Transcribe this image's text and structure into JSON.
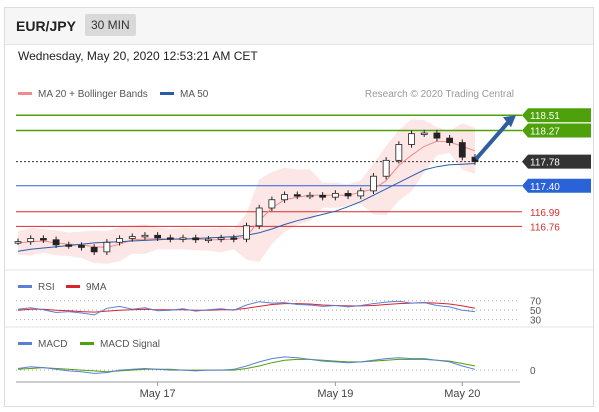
{
  "header": {
    "pair": "EUR/JPY",
    "timeframe": "30 MIN"
  },
  "datetime": "Wednesday, May 20, 2020 12:53:21 AM CET",
  "legend": {
    "bb_label": "MA 20 + Bollinger Bands",
    "ma_label": "MA 50",
    "credit": "Research © 2020 Trading Central",
    "rsi_label": "RSI",
    "rsi_ma_label": "9MA",
    "macd_label": "MACD",
    "macd_signal_label": "MACD Signal"
  },
  "colors": {
    "green": "#4ea10a",
    "blue": "#2a62d8",
    "red": "#d32f2f",
    "dark": "#333333",
    "bb": "#f28b8b",
    "ma50": "#2a5ca8",
    "rsi": "#5b7fd6",
    "rsi_ma": "#d9242c",
    "macd": "#5b7fd6",
    "macd_signal": "#4ea10a"
  },
  "chart_data": [
    {
      "type": "line",
      "panel": "price",
      "ylim": [
        116.2,
        118.75
      ],
      "x_tick_labels": [
        "May 17",
        "May 19",
        "May 20"
      ],
      "levels": [
        {
          "value": 118.51,
          "label": "118.51",
          "color": "#4ea10a",
          "style": "resistance"
        },
        {
          "value": 118.27,
          "label": "118.27",
          "color": "#4ea10a",
          "style": "resistance"
        },
        {
          "value": 117.78,
          "label": "117.78",
          "color": "#333333",
          "style": "current"
        },
        {
          "value": 117.4,
          "label": "117.40",
          "color": "#2a62d8",
          "style": "pivot"
        },
        {
          "value": 116.99,
          "label": "116.99",
          "color": "#d32f2f",
          "style": "support"
        },
        {
          "value": 116.76,
          "label": "116.76",
          "color": "#d32f2f",
          "style": "support"
        }
      ],
      "forecast_arrow": {
        "from": 117.82,
        "to": 118.51
      },
      "series": [
        {
          "name": "MA 20 + Bollinger Bands",
          "values": [
            116.5,
            116.52,
            116.53,
            116.5,
            116.48,
            116.47,
            116.44,
            116.43,
            116.48,
            116.55,
            116.56,
            116.57,
            116.56,
            116.57,
            116.56,
            116.55,
            116.55,
            116.56,
            116.6,
            116.85,
            117.05,
            117.18,
            117.22,
            117.25,
            117.25,
            117.25,
            117.25,
            117.3,
            117.35,
            117.48,
            117.72,
            117.88,
            118.02,
            118.1,
            118.09,
            118.02,
            117.95
          ]
        },
        {
          "name": "MA 50",
          "values": [
            116.37,
            116.4,
            116.42,
            116.44,
            116.46,
            116.48,
            116.5,
            116.51,
            116.52,
            116.53,
            116.54,
            116.55,
            116.56,
            116.56,
            116.57,
            116.58,
            116.59,
            116.6,
            116.62,
            116.66,
            116.72,
            116.79,
            116.85,
            116.9,
            116.95,
            117.0,
            117.07,
            117.15,
            117.25,
            117.35,
            117.45,
            117.55,
            117.65,
            117.7,
            117.73,
            117.74,
            117.75
          ]
        },
        {
          "name": "Price",
          "values": [
            116.52,
            116.57,
            116.55,
            116.47,
            116.46,
            116.43,
            116.36,
            116.51,
            116.57,
            116.6,
            116.62,
            116.58,
            116.56,
            116.58,
            116.55,
            116.56,
            116.58,
            116.56,
            116.77,
            117.05,
            117.18,
            117.26,
            117.24,
            117.25,
            117.22,
            117.28,
            117.24,
            117.32,
            117.55,
            117.8,
            118.05,
            118.22,
            118.23,
            118.15,
            118.08,
            117.85,
            117.78
          ]
        }
      ]
    },
    {
      "type": "line",
      "panel": "rsi",
      "ylim": [
        25,
        80
      ],
      "y_ticks": [
        "70",
        "50",
        "30"
      ],
      "series": [
        {
          "name": "RSI",
          "values": [
            52,
            55,
            51,
            45,
            47,
            44,
            40,
            54,
            58,
            52,
            55,
            49,
            50,
            53,
            48,
            51,
            53,
            50,
            61,
            68,
            65,
            66,
            62,
            61,
            58,
            60,
            57,
            60,
            64,
            67,
            69,
            65,
            66,
            60,
            57,
            50,
            47
          ]
        },
        {
          "name": "9MA",
          "values": [
            50,
            52,
            52,
            50,
            49,
            47,
            46,
            48,
            50,
            51,
            52,
            51,
            51,
            51,
            50,
            50,
            51,
            51,
            54,
            58,
            62,
            64,
            64,
            63,
            61,
            60,
            59,
            59,
            60,
            62,
            64,
            65,
            66,
            65,
            63,
            59,
            54
          ]
        }
      ]
    },
    {
      "type": "line",
      "panel": "macd",
      "ylim": [
        -0.12,
        0.22
      ],
      "y_ticks": [
        "0"
      ],
      "series": [
        {
          "name": "MACD",
          "values": [
            0.02,
            0.04,
            0.03,
            0.01,
            -0.01,
            -0.02,
            -0.04,
            -0.03,
            0.0,
            0.01,
            0.02,
            0.01,
            0.0,
            0.0,
            -0.01,
            0.0,
            0.0,
            0.01,
            0.05,
            0.1,
            0.14,
            0.16,
            0.15,
            0.13,
            0.11,
            0.1,
            0.09,
            0.1,
            0.12,
            0.14,
            0.15,
            0.14,
            0.14,
            0.12,
            0.1,
            0.05,
            0.01
          ]
        },
        {
          "name": "MACD Signal",
          "values": [
            0.01,
            0.02,
            0.03,
            0.02,
            0.01,
            0.0,
            -0.01,
            -0.02,
            -0.01,
            0.0,
            0.01,
            0.01,
            0.01,
            0.0,
            0.0,
            0.0,
            0.0,
            0.0,
            0.02,
            0.05,
            0.09,
            0.12,
            0.13,
            0.13,
            0.12,
            0.11,
            0.1,
            0.1,
            0.11,
            0.12,
            0.13,
            0.13,
            0.13,
            0.12,
            0.11,
            0.08,
            0.05
          ]
        }
      ]
    }
  ]
}
